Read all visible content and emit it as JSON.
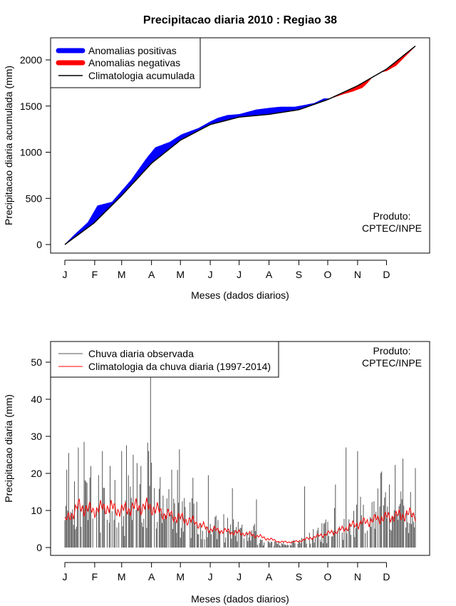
{
  "title": "Precipitacao diaria 2010 : Regiao 38",
  "credit": {
    "line1": "Produto:",
    "line2": "CPTEC/INPE"
  },
  "colors": {
    "positive": "#0000ff",
    "negative": "#ff0000",
    "climatology": "#000000",
    "observed": "#555555",
    "clim_daily": "#ff0000"
  },
  "months": [
    "J",
    "F",
    "M",
    "A",
    "M",
    "J",
    "J",
    "A",
    "S",
    "O",
    "N",
    "D"
  ],
  "month_start_days": [
    1,
    32,
    60,
    91,
    121,
    152,
    182,
    213,
    244,
    274,
    305,
    335
  ],
  "spike": {
    "day": 90,
    "value": 47
  },
  "chart_data": [
    {
      "type": "area",
      "xlabel": "Meses (dados diarios)",
      "ylabel": "Precipitacao diaria acumulada (mm)",
      "xlim": [
        1,
        365
      ],
      "ylim": [
        0,
        2250
      ],
      "yticks": [
        0,
        500,
        1000,
        1500,
        2000
      ],
      "legend": {
        "position": "top-left",
        "items": [
          {
            "label": "Anomalias positivas",
            "kind": "thick",
            "color": "#0000ff"
          },
          {
            "label": "Anomalias negativas",
            "kind": "thick",
            "color": "#ff0000"
          },
          {
            "label": "Climatologia acumulada",
            "kind": "thin",
            "color": "#000000"
          }
        ]
      },
      "climatology_curve": {
        "x": [
          1,
          31,
          60,
          91,
          121,
          152,
          182,
          213,
          244,
          274,
          305,
          335,
          365
        ],
        "y": [
          0,
          230,
          530,
          880,
          1130,
          1300,
          1380,
          1410,
          1460,
          1570,
          1720,
          1900,
          2150
        ]
      },
      "observed_curve": {
        "x": [
          1,
          10,
          25,
          35,
          50,
          70,
          85,
          88,
          95,
          110,
          122,
          140,
          152,
          160,
          170,
          182,
          200,
          215,
          225,
          235,
          240,
          260,
          270,
          276,
          290,
          300,
          310,
          315,
          320,
          330,
          335,
          345,
          365
        ],
        "y": [
          0,
          95,
          240,
          420,
          460,
          700,
          920,
          960,
          1050,
          1110,
          1190,
          1260,
          1330,
          1370,
          1400,
          1410,
          1460,
          1480,
          1490,
          1490,
          1490,
          1530,
          1580,
          1580,
          1630,
          1660,
          1700,
          1750,
          1810,
          1870,
          1880,
          1940,
          2150
        ]
      }
    },
    {
      "type": "bar",
      "xlabel": "Meses (dados diarios)",
      "ylabel": "Precipitacao diaria (mm)",
      "xlim": [
        1,
        365
      ],
      "ylim": [
        0,
        55
      ],
      "yticks": [
        0,
        10,
        20,
        30,
        40,
        50
      ],
      "legend": {
        "position": "top-left",
        "items": [
          {
            "label": "Chuva diaria observada",
            "kind": "thin",
            "color": "#555555"
          },
          {
            "label": "Climatologia da chuva diaria (1997-2014)",
            "kind": "thin",
            "color": "#ff0000"
          }
        ]
      },
      "observed_daily_peaks": [
        {
          "day": 3,
          "value": 21
        },
        {
          "day": 5,
          "value": 25.5
        },
        {
          "day": 15,
          "value": 27
        },
        {
          "day": 21,
          "value": 28.5
        },
        {
          "day": 28,
          "value": 22
        },
        {
          "day": 40,
          "value": 26
        },
        {
          "day": 48,
          "value": 22
        },
        {
          "day": 60,
          "value": 26
        },
        {
          "day": 72,
          "value": 25
        },
        {
          "day": 80,
          "value": 22
        },
        {
          "day": 88,
          "value": 26
        },
        {
          "day": 90,
          "value": 47
        },
        {
          "day": 100,
          "value": 19
        },
        {
          "day": 112,
          "value": 21
        },
        {
          "day": 120,
          "value": 26.5
        },
        {
          "day": 150,
          "value": 19.5
        },
        {
          "day": 175,
          "value": 16
        },
        {
          "day": 200,
          "value": 13
        },
        {
          "day": 250,
          "value": 16.5
        },
        {
          "day": 282,
          "value": 17
        },
        {
          "day": 293,
          "value": 27
        },
        {
          "day": 305,
          "value": 26
        },
        {
          "day": 330,
          "value": 20.5
        },
        {
          "day": 338,
          "value": 17
        },
        {
          "day": 352,
          "value": 24
        },
        {
          "day": 360,
          "value": 15
        }
      ],
      "climatology_daily": {
        "x": [
          1,
          15,
          30,
          45,
          60,
          75,
          90,
          105,
          120,
          135,
          150,
          165,
          180,
          195,
          210,
          225,
          240,
          255,
          270,
          285,
          300,
          315,
          330,
          345,
          360
        ],
        "y": [
          7,
          11,
          10,
          11,
          10,
          11,
          11,
          9,
          8,
          7,
          5,
          4.5,
          4,
          3.5,
          2.5,
          1.5,
          1.5,
          2.5,
          3.5,
          4.5,
          6,
          7,
          8,
          8.5,
          9
        ]
      }
    }
  ]
}
